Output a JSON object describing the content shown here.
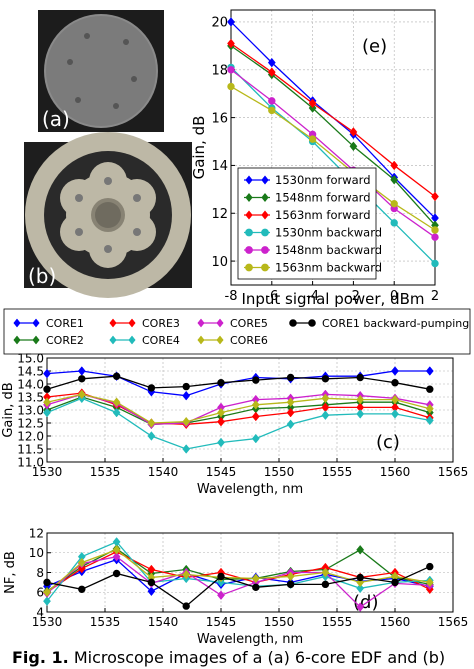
{
  "panels": {
    "a": {
      "label": "(a)"
    },
    "b": {
      "label": "(b)"
    }
  },
  "caption": {
    "prefix": "Fig. 1.",
    "text": " Microscope images of a (a) 6-core EDF and (b)"
  },
  "chart_data": [
    {
      "id": "e",
      "type": "line",
      "annotation": "(e)",
      "xlabel": "Input signal power, dBm",
      "ylabel": "Gain, dB",
      "xlim": [
        -8,
        2
      ],
      "ylim": [
        9,
        20.5
      ],
      "xticks": [
        -8,
        -6,
        -4,
        -2,
        0,
        2
      ],
      "yticks": [
        10,
        12,
        14,
        16,
        18,
        20
      ],
      "grid": true,
      "legend": "bottom-left",
      "x": [
        -8,
        -6,
        -4,
        -2,
        0,
        2
      ],
      "series": [
        {
          "name": "1530nm forward",
          "color": "#0000ff",
          "marker": "diamond",
          "values": [
            20.0,
            18.3,
            16.7,
            15.3,
            13.5,
            11.8
          ]
        },
        {
          "name": "1548nm forward",
          "color": "#1a7a1a",
          "marker": "diamond",
          "values": [
            19.0,
            17.8,
            16.4,
            14.8,
            13.4,
            11.5
          ]
        },
        {
          "name": "1563nm forward",
          "color": "#ff0000",
          "marker": "diamond",
          "values": [
            19.1,
            17.9,
            16.6,
            15.4,
            14.0,
            12.7
          ]
        },
        {
          "name": "1530nm backward",
          "color": "#22bbbb",
          "marker": "circle",
          "values": [
            18.1,
            16.4,
            15.0,
            13.3,
            11.6,
            9.9
          ]
        },
        {
          "name": "1548nm backward",
          "color": "#cc22cc",
          "marker": "circle",
          "values": [
            18.0,
            16.7,
            15.3,
            13.8,
            12.2,
            11.0
          ]
        },
        {
          "name": "1563nm backward",
          "color": "#b8b81a",
          "marker": "circle",
          "values": [
            17.3,
            16.3,
            15.1,
            13.7,
            12.4,
            11.3
          ]
        }
      ]
    },
    {
      "id": "c",
      "type": "line",
      "annotation": "(c)",
      "xlabel": "Wavelength, nm",
      "ylabel": "Gain, dB",
      "xlim": [
        1530,
        1565
      ],
      "ylim": [
        11.0,
        15.0
      ],
      "xticks": [
        1530,
        1535,
        1540,
        1545,
        1550,
        1555,
        1560,
        1565
      ],
      "yticks": [
        11.0,
        11.5,
        12.0,
        12.5,
        13.0,
        13.5,
        14.0,
        14.5,
        15.0
      ],
      "grid": true,
      "x": [
        1530,
        1533,
        1536,
        1539,
        1542,
        1545,
        1548,
        1551,
        1554,
        1557,
        1560,
        1563
      ],
      "series": [
        {
          "name": "CORE1",
          "color": "#0000ff",
          "marker": "diamond",
          "values": [
            14.4,
            14.5,
            14.3,
            13.7,
            13.55,
            14.0,
            14.25,
            14.2,
            14.3,
            14.3,
            14.5,
            14.5
          ]
        },
        {
          "name": "CORE2",
          "color": "#1a7a1a",
          "marker": "diamond",
          "values": [
            13.0,
            13.5,
            13.1,
            12.45,
            12.5,
            12.75,
            13.05,
            13.1,
            13.2,
            13.3,
            13.3,
            12.9
          ]
        },
        {
          "name": "CORE3",
          "color": "#ff0000",
          "marker": "diamond",
          "values": [
            13.5,
            13.65,
            13.2,
            12.5,
            12.45,
            12.55,
            12.75,
            12.9,
            13.1,
            13.1,
            13.1,
            12.7
          ]
        },
        {
          "name": "CORE4",
          "color": "#22bbbb",
          "marker": "diamond",
          "values": [
            12.9,
            13.45,
            12.9,
            12.0,
            11.5,
            11.75,
            11.9,
            12.45,
            12.8,
            12.85,
            12.85,
            12.6
          ]
        },
        {
          "name": "CORE5",
          "color": "#cc22cc",
          "marker": "diamond",
          "values": [
            13.2,
            13.6,
            13.25,
            12.45,
            12.5,
            13.1,
            13.4,
            13.45,
            13.6,
            13.55,
            13.45,
            13.2
          ]
        },
        {
          "name": "CORE6",
          "color": "#b8b81a",
          "marker": "diamond",
          "values": [
            13.3,
            13.6,
            13.3,
            12.5,
            12.55,
            12.9,
            13.2,
            13.3,
            13.45,
            13.4,
            13.4,
            13.05
          ]
        },
        {
          "name": "CORE1 backward-pumping",
          "color": "#000000",
          "marker": "circle",
          "values": [
            13.8,
            14.2,
            14.3,
            13.85,
            13.9,
            14.05,
            14.15,
            14.25,
            14.2,
            14.25,
            14.05,
            13.8
          ]
        }
      ]
    },
    {
      "id": "d",
      "type": "line",
      "annotation": "(d)",
      "xlabel": "Wavelength, nm",
      "ylabel": "NF, dB",
      "xlim": [
        1530,
        1565
      ],
      "ylim": [
        4,
        12
      ],
      "xticks": [
        1530,
        1535,
        1540,
        1545,
        1550,
        1555,
        1560,
        1565
      ],
      "yticks": [
        4,
        6,
        8,
        10,
        12
      ],
      "grid": true,
      "x": [
        1530,
        1533,
        1536,
        1539,
        1542,
        1545,
        1548,
        1551,
        1554,
        1557,
        1560,
        1563
      ],
      "series": [
        {
          "name": "CORE1",
          "color": "#0000ff",
          "marker": "diamond",
          "values": [
            6.6,
            8.1,
            9.3,
            6.1,
            7.9,
            6.8,
            7.5,
            7.0,
            7.8,
            7.1,
            7.4,
            6.6
          ]
        },
        {
          "name": "CORE2",
          "color": "#1a7a1a",
          "marker": "diamond",
          "values": [
            6.1,
            8.6,
            10.4,
            7.9,
            8.3,
            7.3,
            7.4,
            8.1,
            8.3,
            10.3,
            7.5,
            6.8
          ]
        },
        {
          "name": "CORE3",
          "color": "#ff0000",
          "marker": "diamond",
          "values": [
            6.0,
            8.4,
            10.1,
            8.3,
            7.5,
            8.0,
            7.0,
            7.8,
            8.5,
            7.5,
            8.0,
            6.3
          ]
        },
        {
          "name": "CORE4",
          "color": "#22bbbb",
          "marker": "diamond",
          "values": [
            5.1,
            9.6,
            11.1,
            7.0,
            7.4,
            7.0,
            6.6,
            6.8,
            7.6,
            6.4,
            7.0,
            7.2
          ]
        },
        {
          "name": "CORE5",
          "color": "#cc22cc",
          "marker": "diamond",
          "values": [
            5.9,
            8.9,
            9.6,
            6.9,
            8.0,
            5.7,
            7.0,
            8.0,
            8.0,
            4.5,
            6.9,
            6.7
          ]
        },
        {
          "name": "CORE6",
          "color": "#b8b81a",
          "marker": "diamond",
          "values": [
            6.0,
            9.0,
            10.3,
            7.5,
            7.8,
            7.5,
            7.4,
            7.6,
            8.0,
            7.0,
            7.6,
            7.0
          ]
        },
        {
          "name": "CORE1 backward-pumping",
          "color": "#000000",
          "marker": "circle",
          "values": [
            7.0,
            6.3,
            7.9,
            7.0,
            4.6,
            7.6,
            6.5,
            6.8,
            6.8,
            7.5,
            7.0,
            8.6
          ]
        }
      ]
    }
  ]
}
